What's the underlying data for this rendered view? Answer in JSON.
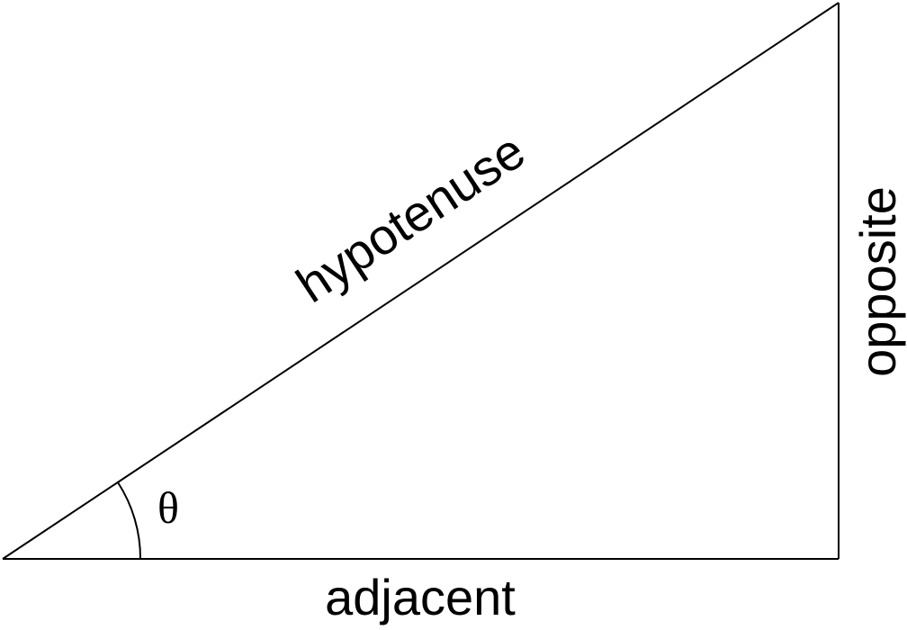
{
  "diagram": {
    "labels": {
      "hypotenuse": "hypotenuse",
      "opposite": "opposite",
      "adjacent": "adjacent",
      "angle": "θ"
    },
    "colors": {
      "stroke": "#000000",
      "background": "#ffffff"
    }
  }
}
